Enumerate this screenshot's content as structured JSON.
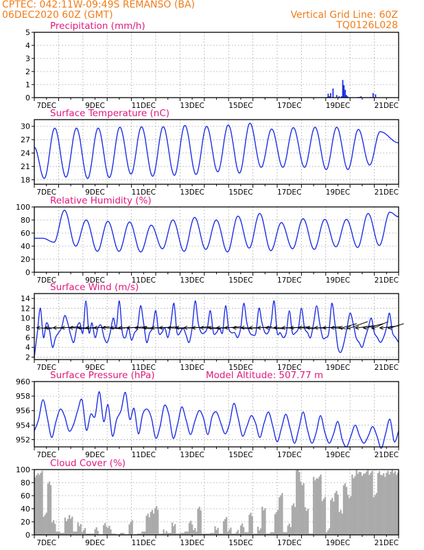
{
  "header": {
    "line1": "CPTEC:   042:11W-09:49S   REMANSO (BA)",
    "line2": "06DEC2020 60Z (GMT)",
    "grid_note": "Vertical Grid Line: 60Z",
    "code": "TQ0126L028"
  },
  "x_ticks": [
    "7DEC",
    "9DEC",
    "11DEC",
    "13DEC",
    "15DEC",
    "17DEC",
    "19DEC",
    "21DEC"
  ],
  "chart_data": [
    {
      "id": "precip",
      "type": "bar",
      "title": "Precipitation (mm/h)",
      "ylim": [
        0,
        5
      ],
      "yticks": [
        0,
        1,
        2,
        3,
        4,
        5
      ],
      "grid": true,
      "x_unit": "days since 06DEC2020 12Z",
      "x": [
        12.05,
        12.1,
        12.15,
        12.2,
        12.3,
        12.45,
        12.55,
        12.65,
        12.7,
        12.75,
        12.8,
        12.85,
        12.9,
        13.35,
        13.4,
        13.45,
        13.85,
        13.95,
        14.05
      ],
      "values": [
        0.05,
        0.3,
        0.1,
        0.35,
        0.7,
        0.2,
        0.1,
        0.1,
        1.35,
        0.95,
        0.6,
        0.2,
        0.1,
        0.05,
        0.05,
        0.1,
        0.05,
        0.35,
        0.25
      ],
      "color": "#1c2ee6"
    },
    {
      "id": "temp",
      "type": "line",
      "title": "Surface Temperature (nC)",
      "ylim": [
        17,
        31.5
      ],
      "yticks": [
        18,
        21,
        24,
        27,
        30
      ],
      "grid": true,
      "color": "#1c2ee6",
      "maxima": [
        25.3,
        29.6,
        29.6,
        29.6,
        29.8,
        29.9,
        29.9,
        30.2,
        30.0,
        30.3,
        30.7,
        29.4,
        29.7,
        29.8,
        29.8,
        29.3,
        28.8
      ],
      "minima": [
        18.3,
        18.6,
        18.3,
        18.5,
        19.3,
        18.8,
        19.0,
        19.2,
        19.8,
        19.5,
        20.8,
        20.8,
        20.8,
        20.3,
        20.3,
        21.3
      ],
      "last": 26.3
    },
    {
      "id": "rh",
      "type": "line",
      "title": "Relative Humidity (%)",
      "ylim": [
        0,
        100
      ],
      "yticks": [
        0,
        20,
        40,
        60,
        80,
        100
      ],
      "grid": true,
      "color": "#1c2ee6",
      "maxima": [
        52,
        95,
        80,
        78,
        77,
        72,
        80,
        84,
        80,
        86,
        90,
        76,
        82,
        81,
        81,
        90,
        92,
        85
      ],
      "minima": [
        46,
        40,
        32,
        32,
        31,
        36,
        32,
        35,
        31,
        37,
        33,
        36,
        35,
        39,
        38,
        41,
        38
      ],
      "last": 47
    },
    {
      "id": "wind",
      "type": "line",
      "title": "Surface Wind (m/s)",
      "ylim": [
        1.5,
        15
      ],
      "yticks": [
        2,
        4,
        6,
        8,
        10,
        12,
        14
      ],
      "grid": true,
      "color": "#1c2ee6",
      "values": [
        2,
        7,
        12,
        6,
        9,
        7.5,
        4,
        6,
        7,
        8,
        10.5,
        9,
        6.5,
        5,
        8,
        9,
        7,
        13.5,
        7,
        9,
        6,
        8,
        8.5,
        6,
        5,
        7,
        10,
        8,
        13.5,
        7,
        6,
        8,
        5.5,
        7,
        8,
        12.5,
        9,
        5,
        7,
        8,
        11.5,
        7,
        7,
        8,
        6,
        9,
        13,
        7,
        7,
        8,
        6.5,
        5,
        8,
        13.5,
        9,
        7,
        7,
        8,
        11.5,
        7,
        7,
        8,
        7,
        12.5,
        8,
        7,
        7,
        6,
        8,
        13,
        9,
        7,
        6.5,
        7,
        12,
        9,
        7,
        7,
        9,
        13.5,
        7,
        7,
        6,
        7,
        11.5,
        7,
        7,
        8,
        12,
        8,
        7,
        6,
        9,
        12.5,
        9,
        6,
        6,
        7,
        13,
        9,
        4,
        3,
        5,
        8,
        11,
        9,
        6,
        5,
        4,
        6,
        8,
        10,
        7,
        6,
        5,
        6,
        8,
        11,
        7,
        6,
        5
      ],
      "arrow_color": "#000000"
    },
    {
      "id": "press",
      "type": "line",
      "title": "Surface Pressure (hPa)",
      "subtitle": "Model Altitude: 507.77 m",
      "ylim": [
        951,
        960
      ],
      "yticks": [
        952,
        954,
        956,
        958,
        960
      ],
      "grid": true,
      "color": "#1c2ee6",
      "values": [
        953.2,
        954.8,
        957.5,
        955.0,
        952.3,
        954.5,
        956.2,
        955.2,
        953.2,
        954.0,
        956.0,
        957.5,
        953.3,
        955.5,
        955.2,
        958.6,
        954.5,
        956.8,
        952.5,
        954.8,
        956.0,
        958.5,
        954.8,
        956.3,
        952.8,
        955.5,
        956.2,
        955.0,
        952.2,
        953.8,
        956.7,
        955.5,
        952.2,
        954.0,
        956.5,
        954.7,
        952.7,
        954.5,
        956.0,
        955.0,
        952.7,
        955.2,
        955.8,
        954.3,
        952.8,
        954.2,
        957.0,
        955.0,
        952.5,
        953.8,
        955.3,
        954.3,
        952.3,
        954.3,
        955.8,
        953.8,
        951.7,
        953.6,
        955.5,
        953.5,
        951.5,
        953.5,
        955.8,
        953.3,
        951.5,
        953.0,
        955.3,
        953.0,
        951.5,
        952.8,
        954.5,
        952.0,
        951.0,
        952.5,
        954.0,
        952.5,
        951.5,
        952.5,
        953.8,
        952.5,
        950.8,
        952.8,
        954.8,
        951.7,
        953.2
      ]
    },
    {
      "id": "cloud",
      "type": "bar",
      "title": "Cloud Cover (%)",
      "ylim": [
        0,
        100
      ],
      "yticks": [
        0,
        20,
        40,
        60,
        80,
        100
      ],
      "grid": true,
      "color": "#aaaaaa",
      "envelope": [
        92,
        95,
        30,
        80,
        20,
        5,
        3,
        25,
        28,
        5,
        15,
        8,
        2,
        2,
        10,
        1,
        15,
        10,
        2,
        1,
        3,
        1,
        20,
        1,
        2,
        5,
        30,
        35,
        40,
        2,
        6,
        3,
        15,
        2,
        3,
        5,
        20,
        8,
        40,
        2,
        2,
        3,
        10,
        2,
        25,
        8,
        2,
        6,
        15,
        4,
        30,
        2,
        10,
        40,
        2,
        4,
        35,
        60,
        4,
        15,
        45,
        98,
        80,
        40,
        2,
        85,
        90,
        55,
        6,
        55,
        65,
        35,
        75,
        60,
        90,
        96,
        92,
        98,
        95,
        60,
        96,
        92,
        95,
        96,
        96
      ]
    }
  ]
}
